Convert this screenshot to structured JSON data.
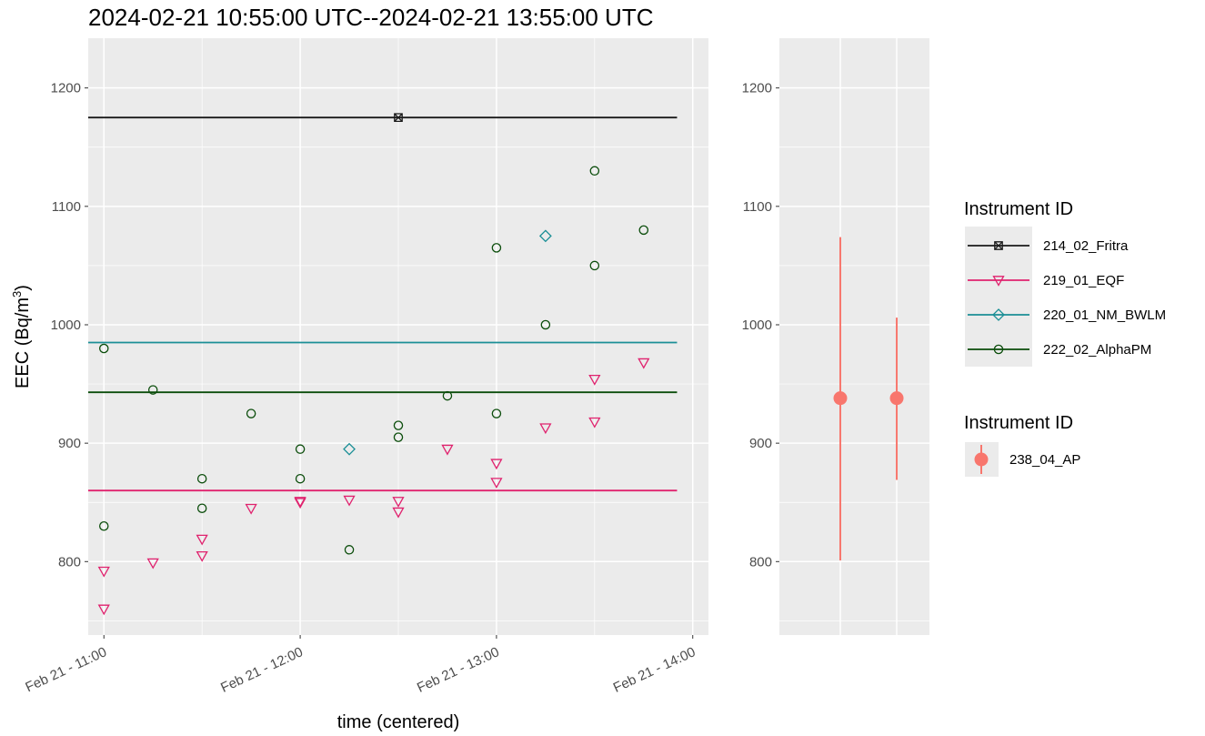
{
  "title": "2024-02-21 10:55:00 UTC--2024-02-21 13:55:00 UTC",
  "chart_data": [
    {
      "type": "scatter",
      "xlabel": "time (centered)",
      "ylabel_main": "EEC (Bq/m",
      "ylabel_sup": "3",
      "ylabel_tail": ")",
      "x_unit": "hours since 10:00 on Feb 21",
      "xlim": [
        10.92,
        14.08
      ],
      "ylim": [
        738,
        1242
      ],
      "grid": true,
      "x_ticks": [
        {
          "value": 11,
          "label": "Feb 21 - 11:00"
        },
        {
          "value": 12,
          "label": "Feb 21 - 12:00"
        },
        {
          "value": 13,
          "label": "Feb 21 - 13:00"
        },
        {
          "value": 14,
          "label": "Feb 21 - 14:00"
        }
      ],
      "y_ticks": [
        800,
        900,
        1000,
        1100,
        1200
      ],
      "series": [
        {
          "name": "214_02_Fritra",
          "color": "#1a1a1a",
          "marker": "boxed-x",
          "mean": 1175,
          "points": [
            [
              12.5,
              1175
            ]
          ]
        },
        {
          "name": "219_01_EQF",
          "color": "#e0226e",
          "marker": "triangle-down",
          "mean": 860,
          "points": [
            [
              11,
              792
            ],
            [
              11,
              760
            ],
            [
              11.25,
              799
            ],
            [
              11.5,
              805
            ],
            [
              11.5,
              819
            ],
            [
              11.75,
              845
            ],
            [
              12,
              850
            ],
            [
              12,
              851
            ],
            [
              12.25,
              852
            ],
            [
              12.5,
              851
            ],
            [
              12.5,
              842
            ],
            [
              12.75,
              895
            ],
            [
              13,
              883
            ],
            [
              13,
              867
            ],
            [
              13.25,
              913
            ],
            [
              13.5,
              954
            ],
            [
              13.5,
              918
            ],
            [
              13.75,
              968
            ]
          ]
        },
        {
          "name": "220_01_NM_BWLM",
          "color": "#1b8f96",
          "marker": "diamond",
          "mean": 985,
          "points": [
            [
              12.25,
              895
            ],
            [
              13.25,
              1075
            ]
          ]
        },
        {
          "name": "222_02_AlphaPM",
          "color": "#0b4d0b",
          "marker": "circle",
          "mean": 943,
          "points": [
            [
              11,
              980
            ],
            [
              11,
              830
            ],
            [
              11.25,
              945
            ],
            [
              11.5,
              870
            ],
            [
              11.5,
              845
            ],
            [
              11.75,
              925
            ],
            [
              12,
              895
            ],
            [
              12,
              870
            ],
            [
              12.25,
              810
            ],
            [
              12.5,
              915
            ],
            [
              12.5,
              905
            ],
            [
              12.75,
              940
            ],
            [
              13,
              1065
            ],
            [
              13,
              925
            ],
            [
              13.25,
              1000
            ],
            [
              13.5,
              1130
            ],
            [
              13.5,
              1050
            ],
            [
              13.75,
              1080
            ]
          ]
        }
      ]
    },
    {
      "type": "errorbar",
      "ylim": [
        738,
        1242
      ],
      "y_ticks": [
        800,
        900,
        1000,
        1100,
        1200
      ],
      "grid": true,
      "series": [
        {
          "name": "238_04_AP",
          "color": "#f8766d",
          "points": [
            {
              "value": 938,
              "low": 801,
              "high": 1074
            },
            {
              "value": 938,
              "low": 869,
              "high": 1006
            }
          ]
        }
      ]
    }
  ],
  "legend": [
    {
      "title": "Instrument ID",
      "entries": [
        "214_02_Fritra",
        "219_01_EQF",
        "220_01_NM_BWLM",
        "222_02_AlphaPM"
      ]
    },
    {
      "title": "Instrument ID",
      "entries": [
        "238_04_AP"
      ]
    }
  ]
}
